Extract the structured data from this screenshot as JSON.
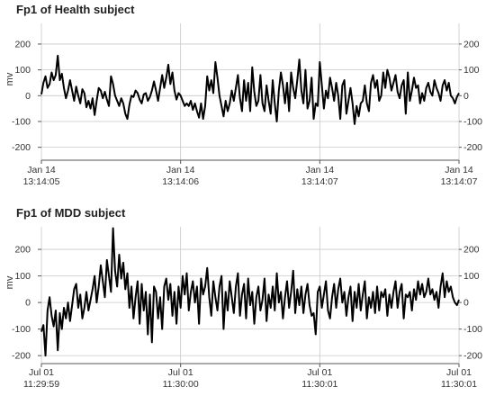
{
  "chart_data": [
    {
      "type": "line",
      "title": "Fp1 of Health subject",
      "ylabel": "mv",
      "ylim": [
        -250,
        280
      ],
      "yticks": [
        -200,
        -100,
        0,
        100,
        200
      ],
      "ytick_labels": [
        "-200",
        "-100",
        "0",
        "100",
        "200"
      ],
      "xticks": [
        {
          "date": "Jan 14",
          "time": "13:14:05"
        },
        {
          "date": "Jan 14",
          "time": "13:14:06"
        },
        {
          "date": "Jan 14",
          "time": "13:14:07"
        },
        {
          "date": "Jan 14",
          "time": "13:14:07"
        }
      ],
      "grid": true,
      "series": [
        {
          "values": [
            5,
            50,
            75,
            30,
            45,
            90,
            60,
            80,
            155,
            60,
            85,
            30,
            -10,
            20,
            60,
            20,
            -20,
            35,
            0,
            -30,
            25,
            10,
            -45,
            -20,
            -50,
            -10,
            -75,
            -20,
            30,
            20,
            -10,
            15,
            -15,
            -40,
            75,
            45,
            0,
            -20,
            -40,
            -10,
            -30,
            -70,
            -90,
            -35,
            0,
            -5,
            20,
            10,
            -15,
            -30,
            5,
            10,
            -20,
            -5,
            20,
            55,
            20,
            -20,
            30,
            80,
            30,
            70,
            120,
            45,
            90,
            20,
            -15,
            10,
            0,
            -20,
            -40,
            -30,
            -40,
            -20,
            -55,
            -30,
            -60,
            -85,
            -30,
            -90,
            -40,
            75,
            20,
            60,
            10,
            130,
            70,
            0,
            -40,
            -80,
            -20,
            -60,
            -30,
            20,
            -20,
            30,
            80,
            -10,
            -60,
            60,
            -20,
            50,
            -60,
            110,
            15,
            -40,
            -20,
            80,
            -30,
            -60,
            40,
            -20,
            -70,
            60,
            -30,
            -100,
            20,
            90,
            40,
            -30,
            50,
            -60,
            90,
            30,
            -10,
            60,
            140,
            20,
            -30,
            100,
            -50,
            -20,
            70,
            -90,
            -30,
            -40,
            130,
            40,
            -50,
            20,
            -10,
            70,
            30,
            -20,
            50,
            0,
            -90,
            40,
            60,
            -70,
            -20,
            30,
            -30,
            -110,
            -40,
            -80,
            -30,
            -20,
            40,
            -30,
            -60,
            50,
            80,
            30,
            60,
            -20,
            0,
            90,
            30,
            100,
            70,
            20,
            50,
            80,
            15,
            -10,
            40,
            60,
            -70,
            90,
            -20,
            20,
            70,
            30,
            40,
            -30,
            10,
            -20,
            30,
            50,
            15,
            0,
            60,
            30,
            10,
            -20,
            40,
            60,
            20,
            50,
            0,
            -10,
            -30,
            -5,
            10
          ]
        }
      ]
    },
    {
      "type": "line",
      "title": "Fp1 of MDD subject",
      "ylabel": "mv",
      "ylim": [
        -230,
        285
      ],
      "yticks": [
        -200,
        -100,
        0,
        100,
        200
      ],
      "ytick_labels": [
        "-200",
        "-100",
        "0",
        "100",
        "200"
      ],
      "xticks": [
        {
          "date": "Jul 01",
          "time": "11:29:59"
        },
        {
          "date": "Jul 01",
          "time": "11:30:00"
        },
        {
          "date": "Jul 01",
          "time": "11:30:01"
        },
        {
          "date": "Jul 01",
          "time": "11:30:01"
        }
      ],
      "grid": true,
      "series": [
        {
          "values": [
            -110,
            -85,
            -200,
            -30,
            20,
            -50,
            -90,
            -30,
            -180,
            -40,
            -100,
            -20,
            -60,
            0,
            -70,
            -10,
            50,
            70,
            -20,
            30,
            -60,
            -20,
            40,
            -30,
            10,
            50,
            100,
            0,
            60,
            140,
            80,
            20,
            160,
            100,
            40,
            280,
            120,
            60,
            180,
            90,
            150,
            50,
            110,
            -20,
            60,
            -60,
            20,
            80,
            -80,
            70,
            -30,
            40,
            -120,
            30,
            -150,
            60,
            40,
            -60,
            20,
            -100,
            60,
            90,
            10,
            70,
            -50,
            40,
            -80,
            60,
            -20,
            100,
            30,
            110,
            -30,
            40,
            80,
            0,
            60,
            -80,
            90,
            30,
            60,
            130,
            20,
            -50,
            80,
            20,
            -30,
            60,
            100,
            -100,
            40,
            -30,
            80,
            20,
            -40,
            60,
            110,
            -50,
            30,
            70,
            -60,
            90,
            -10,
            40,
            -80,
            20,
            60,
            -30,
            10,
            90,
            -70,
            30,
            -20,
            60,
            -30,
            110,
            0,
            40,
            -60,
            20,
            80,
            -20,
            40,
            120,
            -40,
            50,
            -10,
            60,
            -40,
            30,
            70,
            -10,
            -50,
            -40,
            -120,
            40,
            60,
            -20,
            30,
            80,
            -30,
            -60,
            20,
            70,
            -20,
            50,
            90,
            0,
            40,
            -50,
            20,
            60,
            -70,
            40,
            -20,
            70,
            -30,
            30,
            80,
            -60,
            20,
            -20,
            40,
            -40,
            60,
            -30,
            40,
            20,
            50,
            -50,
            30,
            -20,
            40,
            80,
            -20,
            40,
            70,
            -60,
            30,
            20,
            40,
            -30,
            50,
            10,
            80,
            30,
            70,
            20,
            40,
            90,
            30,
            50,
            10,
            40,
            -20,
            60,
            110,
            20,
            80,
            40,
            60,
            20,
            0,
            -10,
            10
          ]
        }
      ]
    }
  ]
}
